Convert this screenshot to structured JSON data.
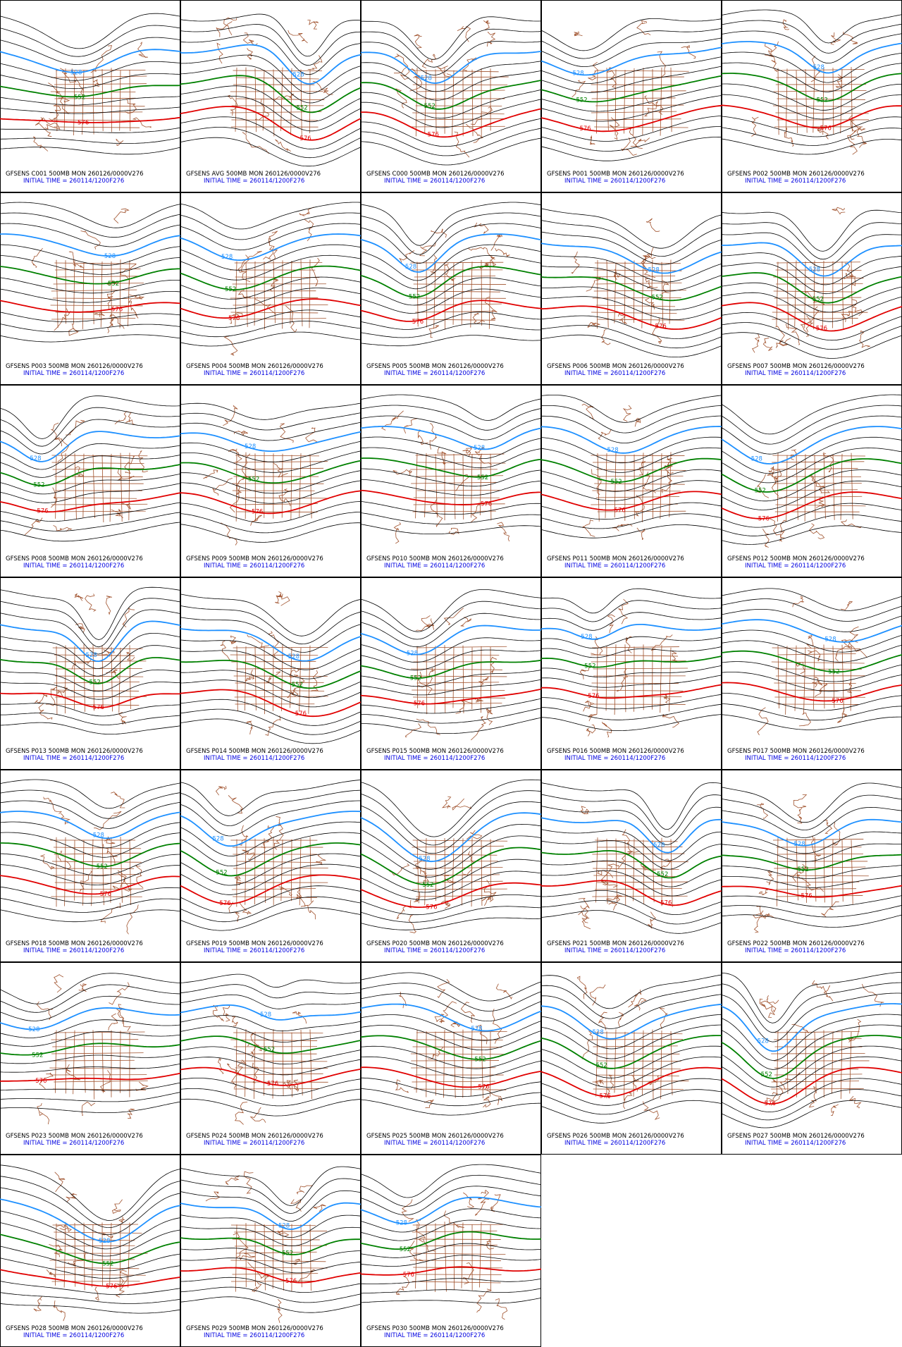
{
  "contour_labels": [
    "528",
    "552",
    "576"
  ],
  "panels": [
    {
      "title": "GFSENS C001 500MB MON 260126/0000V276",
      "init_time": "INITIAL TIME = 260114/1200F276"
    },
    {
      "title": "GFSENS AVG 500MB MON 260126/0000V276",
      "init_time": "INITIAL TIME = 260114/1200F276"
    },
    {
      "title": "GFSENS C000 500MB MON 260126/0000V276",
      "init_time": "INITIAL TIME = 260114/1200F276"
    },
    {
      "title": "GFSENS P001 500MB MON 260126/0000V276",
      "init_time": "INITIAL TIME = 260114/1200F276"
    },
    {
      "title": "GFSENS P002 500MB MON 260126/0000V276",
      "init_time": "INITIAL TIME = 260114/1200F276"
    },
    {
      "title": "GFSENS P003 500MB MON 260126/0000V276",
      "init_time": "INITIAL TIME = 260114/1200F276"
    },
    {
      "title": "GFSENS P004 500MB MON 260126/0000V276",
      "init_time": "INITIAL TIME = 260114/1200F276"
    },
    {
      "title": "GFSENS P005 500MB MON 260126/0000V276",
      "init_time": "INITIAL TIME = 260114/1200F276"
    },
    {
      "title": "GFSENS P006 500MB MON 260126/0000V276",
      "init_time": "INITIAL TIME = 260114/1200F276"
    },
    {
      "title": "GFSENS P007 500MB MON 260126/0000V276",
      "init_time": "INITIAL TIME = 260114/1200F276"
    },
    {
      "title": "GFSENS P008 500MB MON 260126/0000V276",
      "init_time": "INITIAL TIME = 260114/1200F276"
    },
    {
      "title": "GFSENS P009 500MB MON 260126/0000V276",
      "init_time": "INITIAL TIME = 260114/1200F276"
    },
    {
      "title": "GFSENS P010 500MB MON 260126/0000V276",
      "init_time": "INITIAL TIME = 260114/1200F276"
    },
    {
      "title": "GFSENS P011 500MB MON 260126/0000V276",
      "init_time": "INITIAL TIME = 260114/1200F276"
    },
    {
      "title": "GFSENS P012 500MB MON 260126/0000V276",
      "init_time": "INITIAL TIME = 260114/1200F276"
    },
    {
      "title": "GFSENS P013 500MB MON 260126/0000V276",
      "init_time": "INITIAL TIME = 260114/1200F276"
    },
    {
      "title": "GFSENS P014 500MB MON 260126/0000V276",
      "init_time": "INITIAL TIME = 260114/1200F276"
    },
    {
      "title": "GFSENS P015 500MB MON 260126/0000V276",
      "init_time": "INITIAL TIME = 260114/1200F276"
    },
    {
      "title": "GFSENS P016 500MB MON 260126/0000V276",
      "init_time": "INITIAL TIME = 260114/1200F276"
    },
    {
      "title": "GFSENS P017 500MB MON 260126/0000V276",
      "init_time": "INITIAL TIME = 260114/1200F276"
    },
    {
      "title": "GFSENS P018 500MB MON 260126/0000V276",
      "init_time": "INITIAL TIME = 260114/1200F276"
    },
    {
      "title": "GFSENS P019 500MB MON 260126/0000V276",
      "init_time": "INITIAL TIME = 260114/1200F276"
    },
    {
      "title": "GFSENS P020 500MB MON 260126/0000V276",
      "init_time": "INITIAL TIME = 260114/1200F276"
    },
    {
      "title": "GFSENS P021 500MB MON 260126/0000V276",
      "init_time": "INITIAL TIME = 260114/1200F276"
    },
    {
      "title": "GFSENS P022 500MB MON 260126/0000V276",
      "init_time": "INITIAL TIME = 260114/1200F276"
    },
    {
      "title": "GFSENS P023 500MB MON 260126/0000V276",
      "init_time": "INITIAL TIME = 260114/1200F276"
    },
    {
      "title": "GFSENS P024 500MB MON 260126/0000V276",
      "init_time": "INITIAL TIME = 260114/1200F276"
    },
    {
      "title": "GFSENS P025 500MB MON 260126/0000V276",
      "init_time": "INITIAL TIME = 260114/1200F276"
    },
    {
      "title": "GFSENS P026 500MB MON 260126/0000V276",
      "init_time": "INITIAL TIME = 260114/1200F276"
    },
    {
      "title": "GFSENS P027 500MB MON 260126/0000V276",
      "init_time": "INITIAL TIME = 260114/1200F276"
    },
    {
      "title": "GFSENS P028 500MB MON 260126/0000V276",
      "init_time": "INITIAL TIME = 260114/1200F276"
    },
    {
      "title": "GFSENS P029 500MB MON 260126/0000V276",
      "init_time": "INITIAL TIME = 260114/1200F276"
    },
    {
      "title": "GFSENS P030 500MB MON 260126/0000V276",
      "init_time": "INITIAL TIME = 260114/1200F276"
    }
  ]
}
